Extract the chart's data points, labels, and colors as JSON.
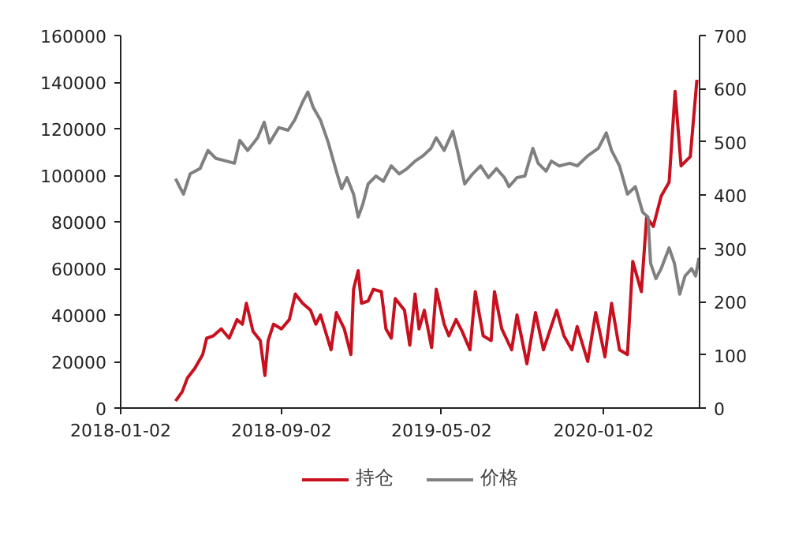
{
  "chart_data": {
    "type": "line",
    "xlim": [
      "2018-01-02",
      "2020-05-26"
    ],
    "xticks": [
      "2018-01-02",
      "2018-09-02",
      "2019-05-02",
      "2020-01-02"
    ],
    "ylim": [
      0,
      160000
    ],
    "yticks": [
      0,
      20000,
      40000,
      60000,
      80000,
      100000,
      120000,
      140000,
      160000
    ],
    "y2lim": [
      0,
      700
    ],
    "y2ticks": [
      0,
      100,
      200,
      300,
      400,
      500,
      600,
      700
    ],
    "grid": false,
    "legend": "bottom",
    "series": [
      {
        "name": "持仓",
        "color": "#c8101e",
        "x": [
          "2018-03-26",
          "2018-04-05",
          "2018-04-13",
          "2018-04-24",
          "2018-05-06",
          "2018-05-12",
          "2018-05-22",
          "2018-06-03",
          "2018-06-15",
          "2018-06-27",
          "2018-07-05",
          "2018-07-11",
          "2018-07-21",
          "2018-08-01",
          "2018-08-08",
          "2018-08-13",
          "2018-08-21",
          "2018-09-02",
          "2018-09-14",
          "2018-09-23",
          "2018-10-04",
          "2018-10-16",
          "2018-10-24",
          "2018-10-31",
          "2018-11-16",
          "2018-11-24",
          "2018-12-06",
          "2018-12-16",
          "2018-12-20",
          "2018-12-27",
          "2019-01-01",
          "2019-01-11",
          "2019-01-19",
          "2019-01-31",
          "2019-02-07",
          "2019-02-15",
          "2019-02-21",
          "2019-03-07",
          "2019-03-15",
          "2019-03-23",
          "2019-03-29",
          "2019-04-06",
          "2019-04-17",
          "2019-04-24",
          "2019-05-06",
          "2019-05-13",
          "2019-05-24",
          "2019-06-02",
          "2019-06-14",
          "2019-06-22",
          "2019-07-04",
          "2019-07-16",
          "2019-07-21",
          "2019-08-01",
          "2019-08-16",
          "2019-08-24",
          "2019-09-08",
          "2019-09-21",
          "2019-10-03",
          "2019-10-23",
          "2019-11-03",
          "2019-11-15",
          "2019-11-23",
          "2019-12-09",
          "2019-12-21",
          "2020-01-04",
          "2020-01-14",
          "2020-01-26",
          "2020-02-07",
          "2020-02-15",
          "2020-02-28",
          "2020-03-07",
          "2020-03-17",
          "2020-03-29",
          "2020-04-10",
          "2020-04-19",
          "2020-04-28",
          "2020-05-12",
          "2020-05-22"
        ],
        "values": [
          3000,
          7000,
          13000,
          17000,
          23000,
          30000,
          31000,
          34000,
          30000,
          38000,
          36000,
          45000,
          33000,
          29000,
          14000,
          29000,
          36000,
          34000,
          38000,
          49000,
          45000,
          42000,
          36000,
          40000,
          25000,
          41000,
          34000,
          23000,
          51000,
          59000,
          45000,
          46000,
          51000,
          50000,
          34000,
          30000,
          47000,
          42000,
          27000,
          49000,
          34000,
          42000,
          26000,
          51000,
          36000,
          31000,
          38000,
          33000,
          25000,
          50000,
          31000,
          29000,
          50000,
          34000,
          25000,
          40000,
          19000,
          41000,
          25000,
          42000,
          31000,
          25000,
          35000,
          20000,
          41000,
          22000,
          45000,
          25000,
          23000,
          63000,
          50000,
          82000,
          78000,
          91000,
          97000,
          136000,
          104000,
          108000,
          141000
        ]
      },
      {
        "name": "价格",
        "color": "#808080",
        "axis": "y2",
        "x": [
          "2018-03-26",
          "2018-04-01",
          "2018-04-07",
          "2018-04-17",
          "2018-05-02",
          "2018-05-14",
          "2018-05-26",
          "2018-06-11",
          "2018-06-23",
          "2018-07-01",
          "2018-07-13",
          "2018-07-28",
          "2018-08-07",
          "2018-08-15",
          "2018-08-29",
          "2018-09-12",
          "2018-09-22",
          "2018-10-04",
          "2018-10-12",
          "2018-10-20",
          "2018-10-31",
          "2018-11-12",
          "2018-11-24",
          "2018-12-02",
          "2018-12-10",
          "2018-12-20",
          "2018-12-27",
          "2019-01-03",
          "2019-01-11",
          "2019-01-23",
          "2019-02-03",
          "2019-02-15",
          "2019-02-27",
          "2019-03-11",
          "2019-03-23",
          "2019-04-04",
          "2019-04-16",
          "2019-04-24",
          "2019-05-06",
          "2019-05-19",
          "2019-05-27",
          "2019-06-06",
          "2019-06-18",
          "2019-06-30",
          "2019-07-12",
          "2019-07-24",
          "2019-08-05",
          "2019-08-12",
          "2019-08-24",
          "2019-09-05",
          "2019-09-17",
          "2019-09-25",
          "2019-10-07",
          "2019-10-15",
          "2019-10-27",
          "2019-11-12",
          "2019-11-23",
          "2019-12-09",
          "2019-12-25",
          "2020-01-06",
          "2020-01-14",
          "2020-01-26",
          "2020-02-07",
          "2020-02-19",
          "2020-03-01",
          "2020-03-09",
          "2020-03-13",
          "2020-03-21",
          "2020-03-29",
          "2020-04-10",
          "2020-04-18",
          "2020-04-26",
          "2020-05-04",
          "2020-05-14",
          "2020-05-20",
          "2020-05-25"
        ],
        "values": [
          431,
          416,
          402,
          440,
          450,
          484,
          469,
          464,
          460,
          503,
          484,
          508,
          537,
          498,
          527,
          522,
          541,
          575,
          594,
          565,
          541,
          498,
          445,
          412,
          433,
          402,
          359,
          383,
          421,
          436,
          426,
          455,
          440,
          450,
          464,
          474,
          488,
          508,
          484,
          520,
          479,
          421,
          440,
          455,
          433,
          450,
          433,
          416,
          433,
          436,
          488,
          460,
          445,
          464,
          455,
          460,
          455,
          474,
          488,
          517,
          484,
          455,
          402,
          416,
          368,
          359,
          272,
          243,
          262,
          301,
          272,
          214,
          248,
          262,
          248,
          282
        ]
      }
    ]
  }
}
